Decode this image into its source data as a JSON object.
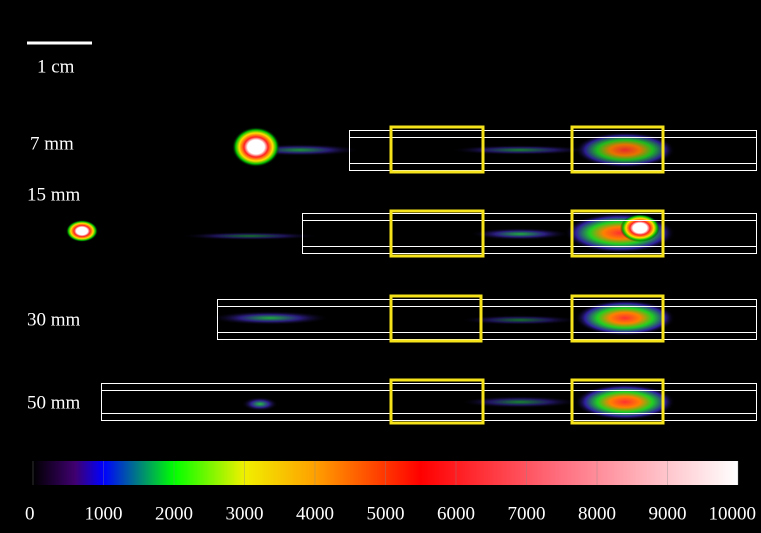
{
  "scale_bar": {
    "label": "1 cm"
  },
  "samples": [
    {
      "label": "7 mm"
    },
    {
      "label": "15 mm"
    },
    {
      "label": "30 mm"
    },
    {
      "label": "50 mm"
    }
  ],
  "colorbar": {
    "ticks": [
      0,
      1000,
      2000,
      3000,
      4000,
      5000,
      6000,
      7000,
      8000,
      9000,
      10000
    ]
  }
}
